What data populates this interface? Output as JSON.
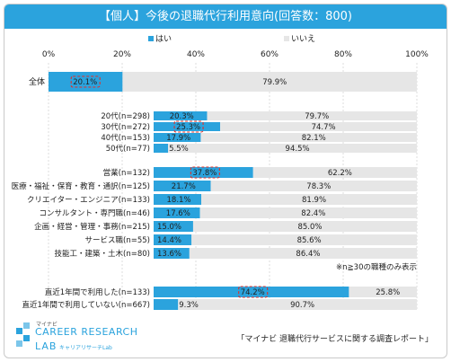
{
  "title": "【個人】今後の退職代行利用意向(回答数：800)",
  "source": "「マイナビ 退職代行サービスに関する調査レポート」",
  "note": "※n≧30の職種のみ表示",
  "logo": {
    "sub": "マイナビ",
    "main": "CAREER RESEARCH",
    "lab": "LAB",
    "lab_sub": "キャリアリサーチLab"
  },
  "colors": {
    "header": "#2ba3dd",
    "yes": "#2ba3dd",
    "no": "#e6e6e6",
    "highlight": "#e0302a"
  },
  "chart_data": {
    "type": "bar",
    "orientation": "horizontal",
    "stacked": true,
    "percent_stacked": true,
    "xlim": [
      0,
      100
    ],
    "x_tick_labels": [
      "0%",
      "20%",
      "40%",
      "60%",
      "80%",
      "100%"
    ],
    "legend_position": "top",
    "series": [
      {
        "name": "はい",
        "color": "#2ba3dd"
      },
      {
        "name": "いいえ",
        "color": "#e6e6e6"
      }
    ],
    "groups": [
      {
        "rows": [
          {
            "label": "全体",
            "yes": 20.1,
            "no": 79.9,
            "yes_label": "20.1%",
            "no_label": "79.9%",
            "highlight": true
          }
        ]
      },
      {
        "rows": [
          {
            "label": "20代(n=298)",
            "yes": 20.3,
            "no": 79.7,
            "yes_label": "20.3%",
            "no_label": "79.7%",
            "highlight": false
          },
          {
            "label": "30代(n=272)",
            "yes": 25.3,
            "no": 74.7,
            "yes_label": "25.3%",
            "no_label": "74.7%",
            "highlight": true
          },
          {
            "label": "40代(n=153)",
            "yes": 17.9,
            "no": 82.1,
            "yes_label": "17.9%",
            "no_label": "82.1%",
            "highlight": false
          },
          {
            "label": "50代(n=77)",
            "yes": 5.5,
            "no": 94.5,
            "yes_label": "5.5%",
            "no_label": "94.5%",
            "highlight": false
          }
        ]
      },
      {
        "rows": [
          {
            "label": "営業(n=132)",
            "yes": 37.8,
            "no": 62.2,
            "yes_label": "37.8%",
            "no_label": "62.2%",
            "highlight": true
          },
          {
            "label": "医療・福祉・保育・教育・通訳(n=125)",
            "yes": 21.7,
            "no": 78.3,
            "yes_label": "21.7%",
            "no_label": "78.3%",
            "highlight": false
          },
          {
            "label": "クリエイター・エンジニア(n=133)",
            "yes": 18.1,
            "no": 81.9,
            "yes_label": "18.1%",
            "no_label": "81.9%",
            "highlight": false
          },
          {
            "label": "コンサルタント・専門職(n=46)",
            "yes": 17.6,
            "no": 82.4,
            "yes_label": "17.6%",
            "no_label": "82.4%",
            "highlight": false
          },
          {
            "label": "企画・経営・管理・事務(n=215)",
            "yes": 15.0,
            "no": 85.0,
            "yes_label": "15.0%",
            "no_label": "85.0%",
            "highlight": false
          },
          {
            "label": "サービス職(n=55)",
            "yes": 14.4,
            "no": 85.6,
            "yes_label": "14.4%",
            "no_label": "85.6%",
            "highlight": false
          },
          {
            "label": "技能工・建築・土木(n=80)",
            "yes": 13.6,
            "no": 86.4,
            "yes_label": "13.6%",
            "no_label": "86.4%",
            "highlight": false
          }
        ]
      },
      {
        "rows": [
          {
            "label": "直近1年間で利用した(n=133)",
            "yes": 74.2,
            "no": 25.8,
            "yes_label": "74.2%",
            "no_label": "25.8%",
            "highlight": true
          },
          {
            "label": "直近1年間で利用していない(n=667)",
            "yes": 9.3,
            "no": 90.7,
            "yes_label": "9.3%",
            "no_label": "90.7%",
            "highlight": false
          }
        ]
      }
    ]
  }
}
